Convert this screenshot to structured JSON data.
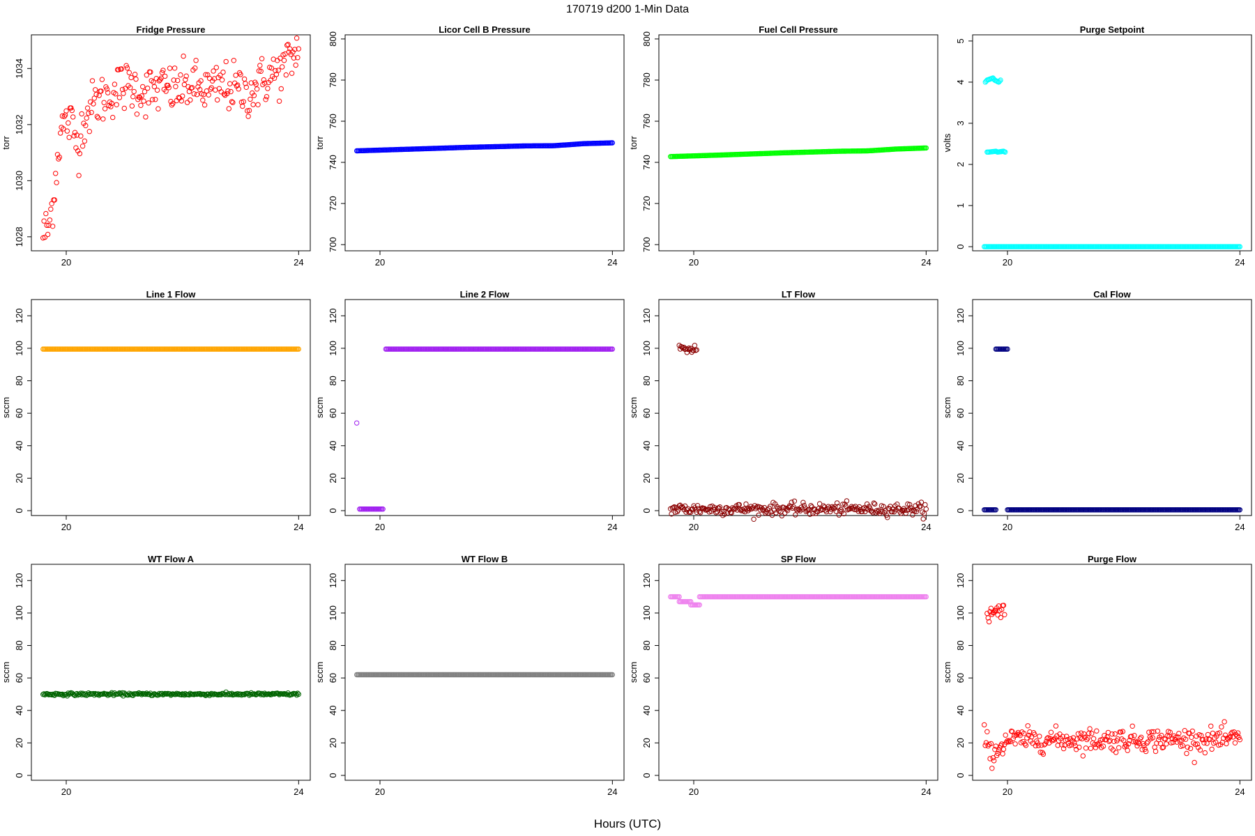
{
  "page": {
    "main_title": "170719   d200   1-Min Data",
    "x_axis_label": "Hours (UTC)"
  },
  "chart_data": [
    {
      "type": "scatter",
      "title": "Fridge Pressure",
      "ylabel": "torr",
      "xlim": [
        19.4,
        24.2
      ],
      "ylim": [
        1027.5,
        1035.2
      ],
      "xticks": [
        20,
        24
      ],
      "yticks": [
        1028,
        1030,
        1032,
        1034
      ],
      "color": "#ff0000",
      "series": [
        {
          "x": [
            19.6,
            19.7,
            19.8,
            19.9,
            20.0,
            20.1,
            20.2,
            20.3,
            20.5,
            20.7,
            20.9,
            21.1,
            21.3,
            21.5,
            21.7,
            21.9,
            22.1,
            22.3,
            22.5,
            22.7,
            22.9,
            23.1,
            23.3,
            23.5,
            23.7,
            23.9,
            24.0
          ],
          "y": [
            1028.1,
            1028.3,
            1029.8,
            1031.8,
            1032.1,
            1032.0,
            1031.2,
            1032.2,
            1032.8,
            1033.0,
            1033.3,
            1033.4,
            1033.2,
            1033.2,
            1033.3,
            1033.2,
            1033.4,
            1033.3,
            1033.2,
            1033.4,
            1033.3,
            1033.1,
            1033.4,
            1033.7,
            1033.9,
            1034.4,
            1034.7
          ]
        }
      ],
      "noise_hint": 0.45
    },
    {
      "type": "scatter",
      "title": "Licor Cell B Pressure",
      "ylabel": "torr",
      "xlim": [
        19.4,
        24.2
      ],
      "ylim": [
        697,
        802
      ],
      "xticks": [
        20,
        24
      ],
      "yticks": [
        700,
        720,
        740,
        760,
        780,
        800
      ],
      "color": "#0000ff",
      "series": [
        {
          "x": [
            19.6,
            20.5,
            21.5,
            22.5,
            23.0,
            23.5,
            24.0
          ],
          "y": [
            745.6,
            746.4,
            747.3,
            748.0,
            748.1,
            749.1,
            749.5
          ]
        }
      ],
      "noise_hint": 0
    },
    {
      "type": "scatter",
      "title": "Fuel Cell Pressure",
      "ylabel": "torr",
      "xlim": [
        19.4,
        24.2
      ],
      "ylim": [
        697,
        802
      ],
      "xticks": [
        20,
        24
      ],
      "yticks": [
        700,
        720,
        740,
        760,
        780,
        800
      ],
      "color": "#00ff00",
      "series": [
        {
          "x": [
            19.6,
            20.5,
            21.5,
            22.5,
            23.0,
            23.5,
            24.0
          ],
          "y": [
            742.8,
            743.6,
            744.6,
            745.4,
            745.6,
            746.5,
            747.0
          ]
        }
      ],
      "noise_hint": 0
    },
    {
      "type": "scatter",
      "title": "Purge Setpoint",
      "ylabel": "volts",
      "xlim": [
        19.4,
        24.2
      ],
      "ylim": [
        -0.1,
        5.15
      ],
      "xticks": [
        20,
        24
      ],
      "yticks": [
        0,
        1,
        2,
        3,
        4,
        5
      ],
      "color": "#00ffff",
      "series": [
        {
          "x": [
            19.6,
            19.8,
            20.0,
            20.2,
            20.4,
            22.0,
            24.0
          ],
          "y": [
            0,
            0,
            0,
            0,
            0,
            0,
            0
          ]
        },
        {
          "x": [
            19.62,
            19.65,
            19.75,
            19.78,
            19.85,
            19.88
          ],
          "y": [
            4.0,
            4.05,
            4.1,
            4.05,
            4.0,
            4.05
          ]
        },
        {
          "x": [
            19.65,
            19.68,
            19.8,
            19.83,
            19.93,
            19.96
          ],
          "y": [
            2.3,
            2.3,
            2.32,
            2.3,
            2.32,
            2.3
          ]
        }
      ],
      "noise_hint": 0
    },
    {
      "type": "scatter",
      "title": "Line 1 Flow",
      "ylabel": "sccm",
      "xlim": [
        19.4,
        24.2
      ],
      "ylim": [
        -3,
        130
      ],
      "xticks": [
        20,
        24
      ],
      "yticks": [
        0,
        20,
        40,
        60,
        80,
        100,
        120
      ],
      "color": "#ffa500",
      "series": [
        {
          "x": [
            19.6,
            20.5,
            22.0,
            23.5,
            24.0
          ],
          "y": [
            99.5,
            99.5,
            99.5,
            99.5,
            99.5
          ]
        }
      ],
      "noise_hint": 0
    },
    {
      "type": "scatter",
      "title": "Line 2 Flow",
      "ylabel": "sccm",
      "xlim": [
        19.4,
        24.2
      ],
      "ylim": [
        -3,
        130
      ],
      "xticks": [
        20,
        24
      ],
      "yticks": [
        0,
        20,
        40,
        60,
        80,
        100,
        120
      ],
      "color": "#a020f0",
      "series": [
        {
          "x": [
            19.6
          ],
          "y": [
            54
          ]
        },
        {
          "x": [
            19.65,
            20.05
          ],
          "y": [
            1,
            1
          ]
        },
        {
          "x": [
            20.1,
            24.0
          ],
          "y": [
            99.5,
            99.5
          ]
        }
      ],
      "noise_hint": 0
    },
    {
      "type": "scatter",
      "title": "LT Flow",
      "ylabel": "sccm",
      "xlim": [
        19.4,
        24.2
      ],
      "ylim": [
        -3,
        130
      ],
      "xticks": [
        20,
        24
      ],
      "yticks": [
        0,
        20,
        40,
        60,
        80,
        100,
        120
      ],
      "color": "#8b0000",
      "series": [
        {
          "x": [
            19.6,
            19.7,
            19.8,
            19.9,
            20.5,
            21.0,
            22.0,
            23.0,
            24.0
          ],
          "y": [
            1,
            1,
            1,
            1,
            1,
            1,
            1,
            1,
            1
          ]
        },
        {
          "x": [
            19.75,
            19.85,
            19.95,
            20.05
          ],
          "y": [
            100,
            99,
            100,
            99
          ]
        }
      ],
      "noise_hint": 1.8
    },
    {
      "type": "scatter",
      "title": "Cal Flow",
      "ylabel": "sccm",
      "xlim": [
        19.4,
        24.2
      ],
      "ylim": [
        -3,
        130
      ],
      "xticks": [
        20,
        24
      ],
      "yticks": [
        0,
        20,
        40,
        60,
        80,
        100,
        120
      ],
      "color": "#000080",
      "series": [
        {
          "x": [
            19.6,
            19.8
          ],
          "y": [
            0.5,
            0.5
          ]
        },
        {
          "x": [
            19.8,
            20.0
          ],
          "y": [
            99.5,
            99.5
          ]
        },
        {
          "x": [
            20.0,
            24.0
          ],
          "y": [
            0.5,
            0.5
          ]
        }
      ],
      "noise_hint": 0
    },
    {
      "type": "scatter",
      "title": "WT Flow A",
      "ylabel": "sccm",
      "xlim": [
        19.4,
        24.2
      ],
      "ylim": [
        -3,
        130
      ],
      "xticks": [
        20,
        24
      ],
      "yticks": [
        0,
        20,
        40,
        60,
        80,
        100,
        120
      ],
      "color": "#006400",
      "series": [
        {
          "x": [
            19.6,
            20.5,
            22.0,
            23.5,
            24.0
          ],
          "y": [
            50,
            50,
            50,
            50,
            50
          ]
        }
      ],
      "noise_hint": 0.4
    },
    {
      "type": "scatter",
      "title": "WT Flow B",
      "ylabel": "sccm",
      "xlim": [
        19.4,
        24.2
      ],
      "ylim": [
        -3,
        130
      ],
      "xticks": [
        20,
        24
      ],
      "yticks": [
        0,
        20,
        40,
        60,
        80,
        100,
        120
      ],
      "color": "#808080",
      "series": [
        {
          "x": [
            19.6,
            20.5,
            22.0,
            23.5,
            24.0
          ],
          "y": [
            62,
            62,
            62,
            62,
            62
          ]
        }
      ],
      "noise_hint": 0
    },
    {
      "type": "scatter",
      "title": "SP Flow",
      "ylabel": "sccm",
      "xlim": [
        19.4,
        24.2
      ],
      "ylim": [
        -3,
        130
      ],
      "xticks": [
        20,
        24
      ],
      "yticks": [
        0,
        20,
        40,
        60,
        80,
        100,
        120
      ],
      "color": "#ee82ee",
      "series": [
        {
          "x": [
            19.6,
            19.75
          ],
          "y": [
            110,
            110
          ]
        },
        {
          "x": [
            19.75,
            19.95
          ],
          "y": [
            107,
            107
          ]
        },
        {
          "x": [
            19.95,
            20.1
          ],
          "y": [
            105,
            105
          ]
        },
        {
          "x": [
            20.1,
            24.0
          ],
          "y": [
            110,
            110
          ]
        }
      ],
      "noise_hint": 0
    },
    {
      "type": "scatter",
      "title": "Purge Flow",
      "ylabel": "sccm",
      "xlim": [
        19.4,
        24.2
      ],
      "ylim": [
        -3,
        130
      ],
      "xticks": [
        20,
        24
      ],
      "yticks": [
        0,
        20,
        40,
        60,
        80,
        100,
        120
      ],
      "color": "#ff0000",
      "series": [
        {
          "x": [
            19.65,
            19.7,
            19.8,
            19.85,
            19.9,
            19.95
          ],
          "y": [
            99.5,
            100,
            100,
            100,
            100,
            99
          ]
        },
        {
          "x": [
            19.6,
            19.7,
            19.8,
            20.0,
            21.0,
            22.0,
            23.0,
            24.0
          ],
          "y": [
            26,
            13,
            15,
            22,
            22,
            22,
            22,
            22
          ]
        }
      ],
      "noise_hint": 3.5
    }
  ]
}
